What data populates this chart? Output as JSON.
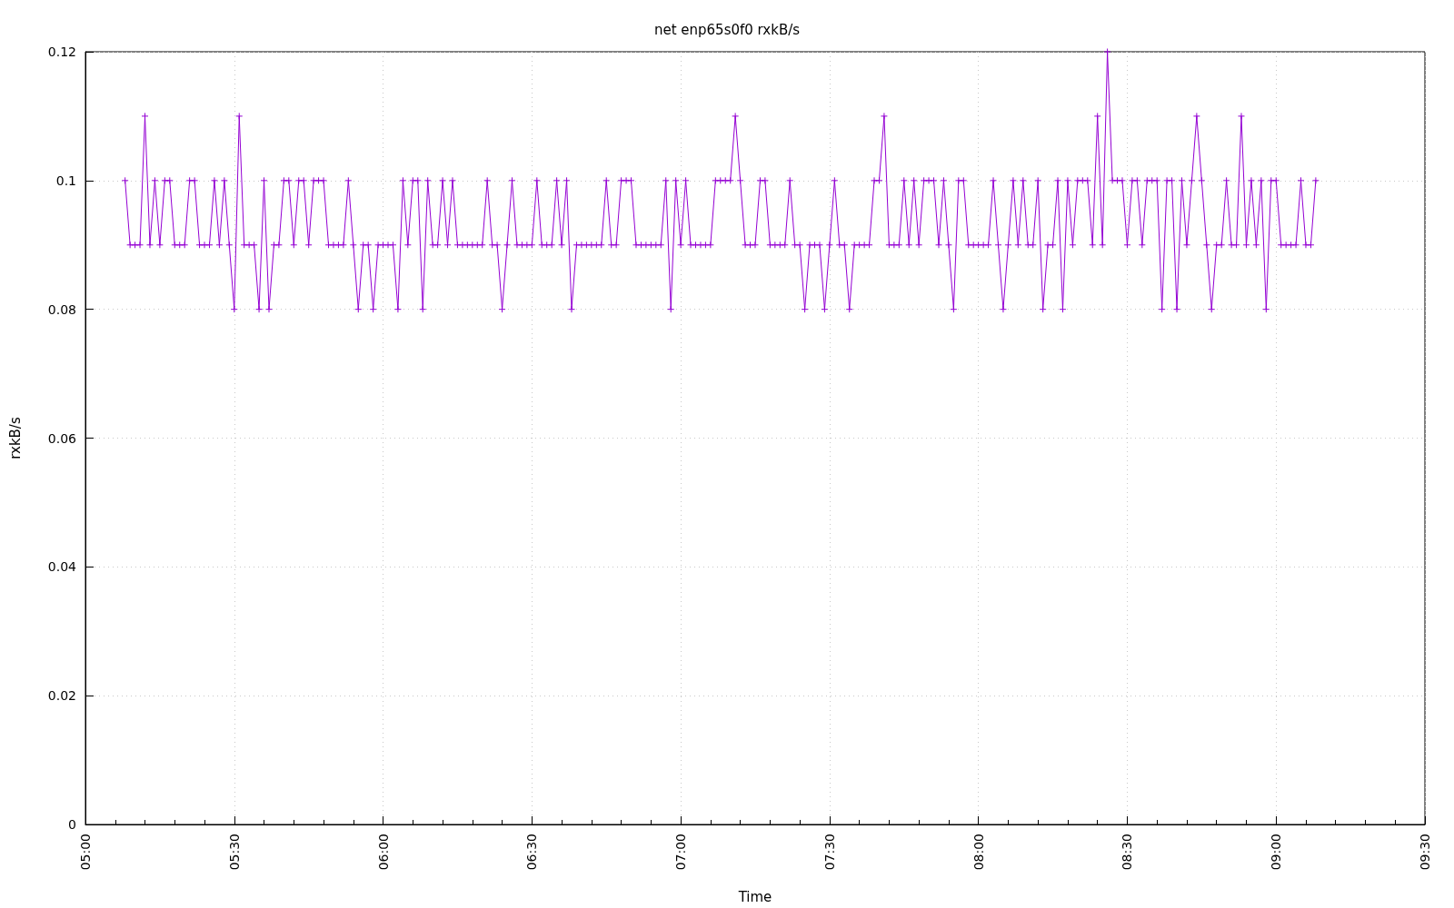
{
  "chart_data": {
    "type": "line",
    "title": "net enp65s0f0 rxkB/s",
    "xlabel": "Time",
    "ylabel": "rxkB/s",
    "xlim": [
      5,
      9.5
    ],
    "xticks": [
      {
        "value": 5,
        "label": "05:00"
      },
      {
        "value": 5.5,
        "label": "05:30"
      },
      {
        "value": 6,
        "label": "06:00"
      },
      {
        "value": 6.5,
        "label": "06:30"
      },
      {
        "value": 7,
        "label": "07:00"
      },
      {
        "value": 7.5,
        "label": "07:30"
      },
      {
        "value": 8,
        "label": "08:00"
      },
      {
        "value": 8.5,
        "label": "08:30"
      },
      {
        "value": 9,
        "label": "09:00"
      },
      {
        "value": 9.5,
        "label": "09:30"
      }
    ],
    "ylim": [
      0,
      0.12
    ],
    "yticks": [
      0,
      0.02,
      0.04,
      0.06,
      0.08,
      0.1,
      0.12
    ],
    "grid": true,
    "marker": "cross",
    "line_style": "solid",
    "series": [
      {
        "color": "#9400d3",
        "x": [
          5.1333,
          5.15,
          5.1667,
          5.1833,
          5.2,
          5.2167,
          5.2333,
          5.25,
          5.2667,
          5.2833,
          5.3,
          5.3167,
          5.3333,
          5.35,
          5.3667,
          5.3833,
          5.4,
          5.4167,
          5.4333,
          5.45,
          5.4667,
          5.4833,
          5.5,
          5.5167,
          5.5333,
          5.55,
          5.5667,
          5.5833,
          5.6,
          5.6167,
          5.6333,
          5.65,
          5.6667,
          5.6833,
          5.7,
          5.7167,
          5.7333,
          5.75,
          5.7667,
          5.7833,
          5.8,
          5.8167,
          5.8333,
          5.85,
          5.8667,
          5.8833,
          5.9,
          5.9167,
          5.9333,
          5.95,
          5.9667,
          5.9833,
          6,
          6.0167,
          6.0333,
          6.05,
          6.0667,
          6.0833,
          6.1,
          6.1167,
          6.1333,
          6.15,
          6.1667,
          6.1833,
          6.2,
          6.2167,
          6.2333,
          6.25,
          6.2667,
          6.2833,
          6.3,
          6.3167,
          6.3333,
          6.35,
          6.3667,
          6.3833,
          6.4,
          6.4167,
          6.4333,
          6.45,
          6.4667,
          6.4833,
          6.5,
          6.5167,
          6.5333,
          6.55,
          6.5667,
          6.5833,
          6.6,
          6.6167,
          6.6333,
          6.65,
          6.6667,
          6.6833,
          6.7,
          6.7167,
          6.7333,
          6.75,
          6.7667,
          6.7833,
          6.8,
          6.8167,
          6.8333,
          6.85,
          6.8667,
          6.8833,
          6.9,
          6.9167,
          6.9333,
          6.95,
          6.9667,
          6.9833,
          7,
          7.0167,
          7.0333,
          7.05,
          7.0667,
          7.0833,
          7.1,
          7.1167,
          7.1333,
          7.15,
          7.1667,
          7.1833,
          7.2,
          7.2167,
          7.2333,
          7.25,
          7.2667,
          7.2833,
          7.3,
          7.3167,
          7.3333,
          7.35,
          7.3667,
          7.3833,
          7.4,
          7.4167,
          7.4333,
          7.45,
          7.4667,
          7.4833,
          7.5,
          7.5167,
          7.5333,
          7.55,
          7.5667,
          7.5833,
          7.6,
          7.6167,
          7.6333,
          7.65,
          7.6667,
          7.6833,
          7.7,
          7.7167,
          7.7333,
          7.75,
          7.7667,
          7.7833,
          7.8,
          7.8167,
          7.8333,
          7.85,
          7.8667,
          7.8833,
          7.9,
          7.9167,
          7.9333,
          7.95,
          7.9667,
          7.9833,
          8,
          8.0167,
          8.0333,
          8.05,
          8.0667,
          8.0833,
          8.1,
          8.1167,
          8.1333,
          8.15,
          8.1667,
          8.1833,
          8.2,
          8.2167,
          8.2333,
          8.25,
          8.2667,
          8.2833,
          8.3,
          8.3167,
          8.3333,
          8.35,
          8.3667,
          8.3833,
          8.4,
          8.4167,
          8.4333,
          8.45,
          8.4667,
          8.4833,
          8.5,
          8.5167,
          8.5333,
          8.55,
          8.5667,
          8.5833,
          8.6,
          8.6167,
          8.6333,
          8.65,
          8.6667,
          8.6833,
          8.7,
          8.7167,
          8.7333,
          8.75,
          8.7667,
          8.7833,
          8.8,
          8.8167,
          8.8333,
          8.85,
          8.8667,
          8.8833,
          8.9,
          8.9167,
          8.9333,
          8.95,
          8.9667,
          8.9833,
          9,
          9.0167,
          9.0333,
          9.05,
          9.0667,
          9.0833,
          9.1,
          9.1167,
          9.1333
        ],
        "values": [
          0.1,
          0.09,
          0.09,
          0.09,
          0.11,
          0.09,
          0.1,
          0.09,
          0.1,
          0.1,
          0.09,
          0.09,
          0.09,
          0.1,
          0.1,
          0.09,
          0.09,
          0.09,
          0.1,
          0.09,
          0.1,
          0.09,
          0.08,
          0.11,
          0.09,
          0.09,
          0.09,
          0.08,
          0.1,
          0.08,
          0.09,
          0.09,
          0.1,
          0.1,
          0.09,
          0.1,
          0.1,
          0.09,
          0.1,
          0.1,
          0.1,
          0.09,
          0.09,
          0.09,
          0.09,
          0.1,
          0.09,
          0.08,
          0.09,
          0.09,
          0.08,
          0.09,
          0.09,
          0.09,
          0.09,
          0.08,
          0.1,
          0.09,
          0.1,
          0.1,
          0.08,
          0.1,
          0.09,
          0.09,
          0.1,
          0.09,
          0.1,
          0.09,
          0.09,
          0.09,
          0.09,
          0.09,
          0.09,
          0.1,
          0.09,
          0.09,
          0.08,
          0.09,
          0.1,
          0.09,
          0.09,
          0.09,
          0.09,
          0.1,
          0.09,
          0.09,
          0.09,
          0.1,
          0.09,
          0.1,
          0.08,
          0.09,
          0.09,
          0.09,
          0.09,
          0.09,
          0.09,
          0.1,
          0.09,
          0.09,
          0.1,
          0.1,
          0.1,
          0.09,
          0.09,
          0.09,
          0.09,
          0.09,
          0.09,
          0.1,
          0.08,
          0.1,
          0.09,
          0.1,
          0.09,
          0.09,
          0.09,
          0.09,
          0.09,
          0.1,
          0.1,
          0.1,
          0.1,
          0.11,
          0.1,
          0.09,
          0.09,
          0.09,
          0.1,
          0.1,
          0.09,
          0.09,
          0.09,
          0.09,
          0.1,
          0.09,
          0.09,
          0.08,
          0.09,
          0.09,
          0.09,
          0.08,
          0.09,
          0.1,
          0.09,
          0.09,
          0.08,
          0.09,
          0.09,
          0.09,
          0.09,
          0.1,
          0.1,
          0.11,
          0.09,
          0.09,
          0.09,
          0.1,
          0.09,
          0.1,
          0.09,
          0.1,
          0.1,
          0.1,
          0.09,
          0.1,
          0.09,
          0.08,
          0.1,
          0.1,
          0.09,
          0.09,
          0.09,
          0.09,
          0.09,
          0.1,
          0.09,
          0.08,
          0.09,
          0.1,
          0.09,
          0.1,
          0.09,
          0.09,
          0.1,
          0.08,
          0.09,
          0.09,
          0.1,
          0.08,
          0.1,
          0.09,
          0.1,
          0.1,
          0.1,
          0.09,
          0.11,
          0.09,
          0.12,
          0.1,
          0.1,
          0.1,
          0.09,
          0.1,
          0.1,
          0.09,
          0.1,
          0.1,
          0.1,
          0.08,
          0.1,
          0.1,
          0.08,
          0.1,
          0.09,
          0.1,
          0.11,
          0.1,
          0.09,
          0.08,
          0.09,
          0.09,
          0.1,
          0.09,
          0.09,
          0.11,
          0.09,
          0.1,
          0.09,
          0.1,
          0.08,
          0.1,
          0.1,
          0.09,
          0.09,
          0.09,
          0.09,
          0.1,
          0.09,
          0.09,
          0.1
        ]
      }
    ]
  }
}
